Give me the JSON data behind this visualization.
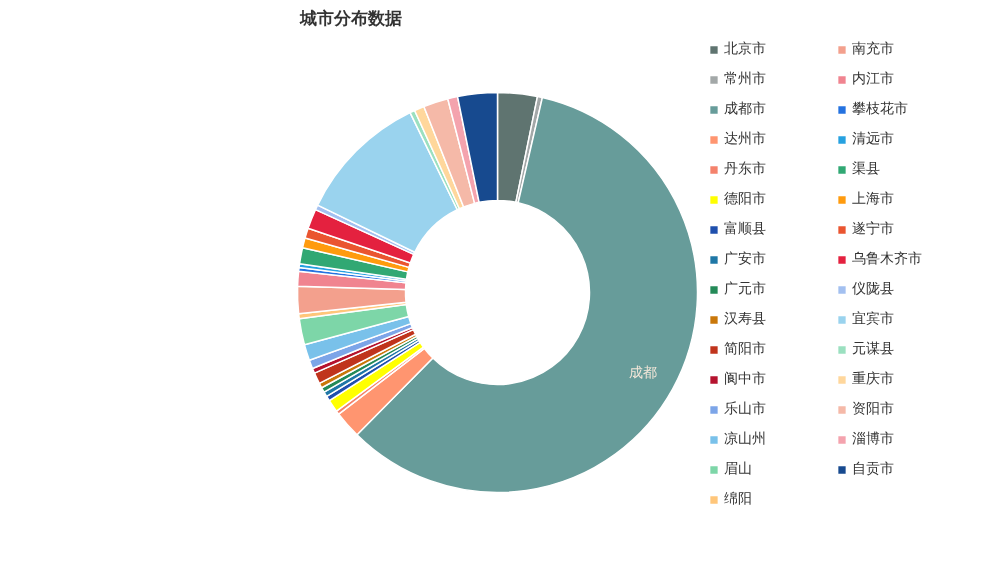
{
  "chart_data": {
    "type": "donut",
    "title": "城市分布数据",
    "legend": "right",
    "categories": [
      "北京市",
      "常州市",
      "成都市",
      "达州市",
      "丹东市",
      "德阳市",
      "富顺县",
      "广安市",
      "广元市",
      "汉寿县",
      "简阳市",
      "阆中市",
      "乐山市",
      "凉山州",
      "眉山",
      "绵阳",
      "南充市",
      "内江市",
      "攀枝花市",
      "清远市",
      "渠县",
      "上海市",
      "遂宁市",
      "乌鲁木齐市",
      "仪陇县",
      "宜宾市",
      "元谋县",
      "重庆市",
      "资阳市",
      "淄博市",
      "自贡市"
    ],
    "values": [
      3.2,
      0.4,
      58.8,
      2.2,
      0.3,
      1.0,
      0.4,
      0.4,
      0.4,
      0.4,
      0.9,
      0.4,
      0.7,
      1.3,
      2.1,
      0.4,
      2.2,
      1.2,
      0.3,
      0.3,
      1.3,
      0.8,
      0.8,
      1.6,
      0.4,
      10.6,
      0.4,
      0.8,
      2.0,
      0.8,
      3.2
    ],
    "colors": [
      "#5f7470",
      "#a3a8a8",
      "#679c9a",
      "#ff9570",
      "#f4826c",
      "#ffff00",
      "#1f4fad",
      "#1f77a6",
      "#248a58",
      "#c9770a",
      "#c0341c",
      "#b5122e",
      "#7ca5e8",
      "#79c1ea",
      "#7dd6a8",
      "#ffc67a",
      "#f3a08d",
      "#f08490",
      "#2472e0",
      "#26a1e0",
      "#31a873",
      "#ff9b0e",
      "#ea5530",
      "#e4213f",
      "#a3c0f0",
      "#9ad3ee",
      "#9be0c0",
      "#ffd79c",
      "#f5b9a8",
      "#f4a3ae",
      "#174a8f"
    ],
    "annotations": [
      "成都"
    ]
  }
}
